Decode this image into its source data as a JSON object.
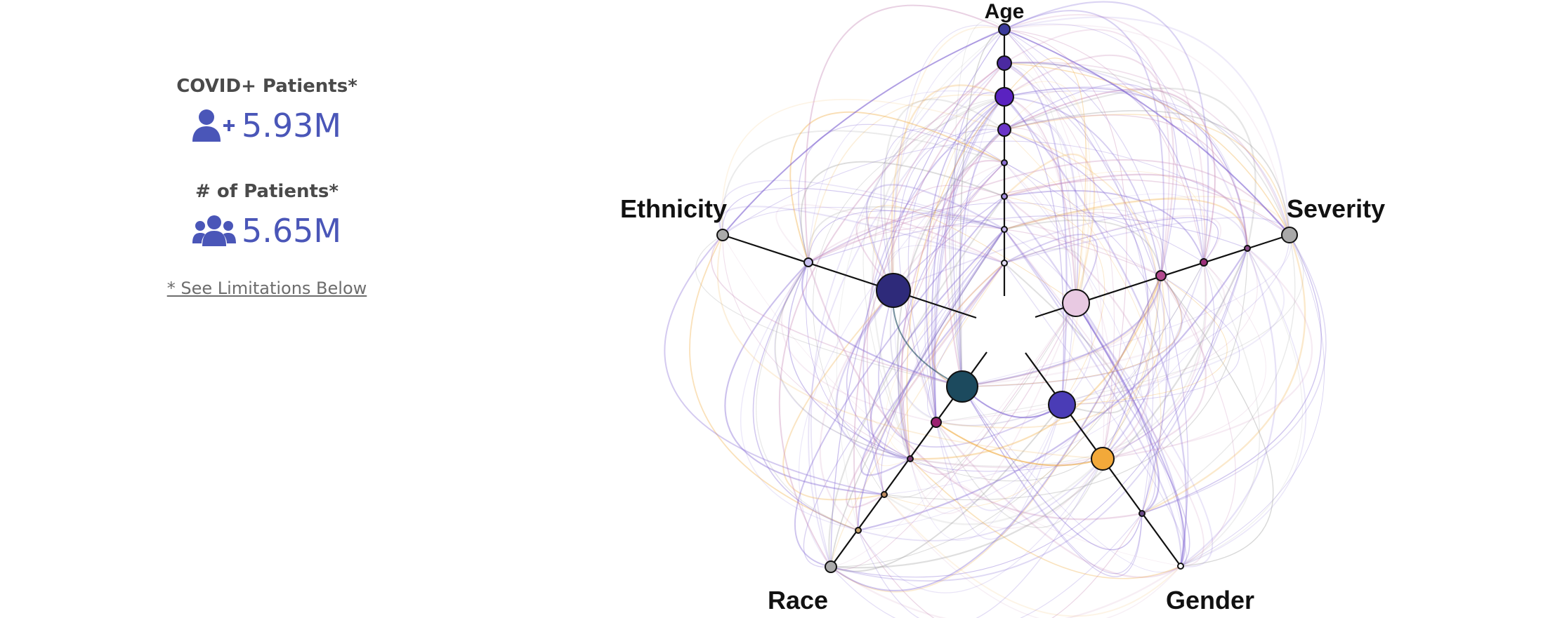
{
  "stats": {
    "covid_label": "COVID+ Patients*",
    "covid_value": "5.93M",
    "patients_label": "# of Patients*",
    "patients_value": "5.65M",
    "limitations_link": "* See Limitations Below"
  },
  "icons": {
    "covid": "user-plus-icon",
    "patients": "users-icon"
  },
  "colors": {
    "stat_value": "#4a56b8",
    "stat_label": "#4a4a4a",
    "link": "#6d6d6d"
  },
  "chart_data": {
    "type": "radial-hive",
    "axes": [
      "Age",
      "Severity",
      "Gender",
      "Race",
      "Ethnicity"
    ],
    "colors": {
      "purple_line": "#7b5fd1",
      "pink_line": "#c98bb8",
      "orange_line": "#f0a93a",
      "gray_line": "#9a9a9a",
      "teal_line": "#1c4a5e"
    }
  }
}
